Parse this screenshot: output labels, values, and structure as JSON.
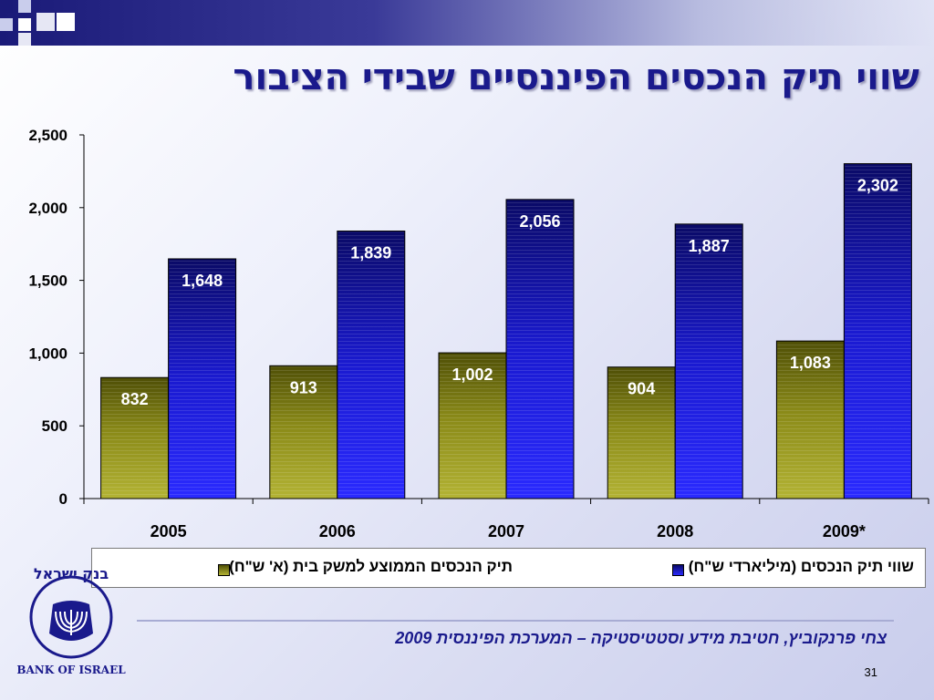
{
  "slide": {
    "title": "שווי תיק הנכסים הפיננסיים שבידי הציבור",
    "footer": "צחי פרנקוביץ, חטיבת מידע וסטטיסטיקה – המערכת הפיננסית 2009",
    "page_number": "31"
  },
  "logo": {
    "text_hebrew": "בנק ישראל",
    "text_english": "BANK OF ISRAEL"
  },
  "colors": {
    "series_household": "#8a8a18",
    "series_total": "#1a1ad8",
    "title": "#1a1a8c"
  },
  "chart_data": {
    "type": "bar",
    "categories": [
      "2005",
      "2006",
      "2007",
      "2008",
      "2009*"
    ],
    "series": [
      {
        "name": "תיק הנכסים הממוצע למשק בית (א' ש\"ח)",
        "values": [
          832,
          913,
          1002,
          904,
          1083
        ],
        "data_labels": [
          "832",
          "913",
          "1,002",
          "904",
          "1,083"
        ]
      },
      {
        "name": "שווי תיק הנכסים  (מיליארדי ש\"ח)",
        "values": [
          1648,
          1839,
          2056,
          1887,
          2302
        ],
        "data_labels": [
          "1,648",
          "1,839",
          "2,056",
          "1,887",
          "2,302"
        ]
      }
    ],
    "ylim": [
      0,
      2500
    ],
    "yticks": [
      0,
      500,
      1000,
      1500,
      2000,
      2500
    ],
    "ytick_labels": [
      "0",
      "500",
      "1,000",
      "1,500",
      "2,000",
      "2,500"
    ],
    "xlabel": "",
    "ylabel": "",
    "grid": false,
    "legend_position": "bottom"
  }
}
